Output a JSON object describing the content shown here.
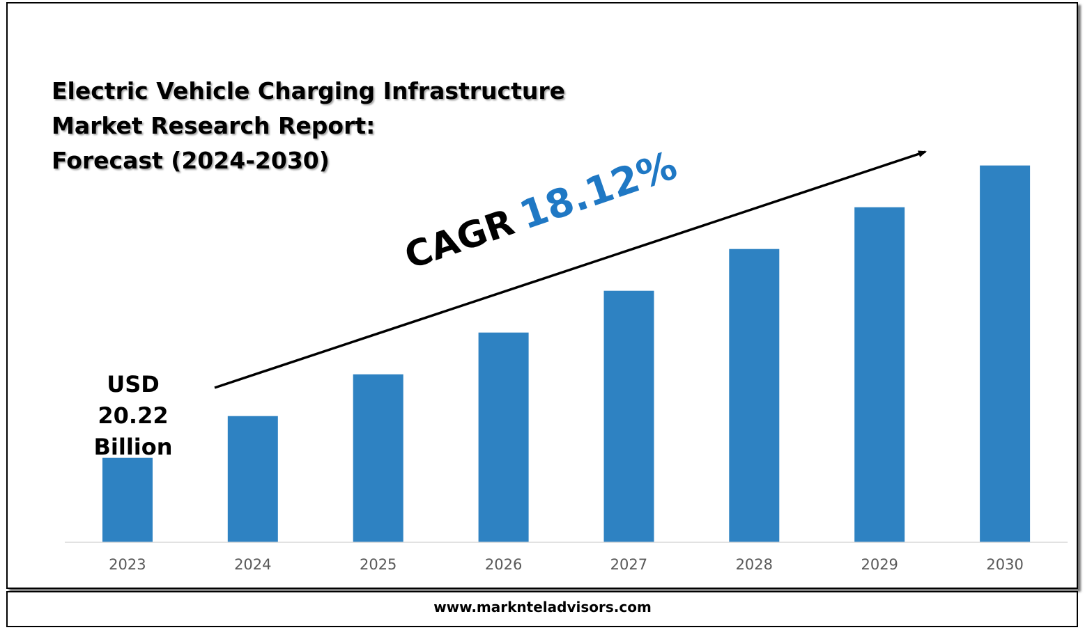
{
  "title_lines": [
    "Electric Vehicle Charging Infrastructure",
    "Market Research Report:",
    "Forecast (2024-2030)"
  ],
  "cagr": {
    "label": "CAGR",
    "value": "18.12%"
  },
  "first_value_label": [
    "USD",
    "20.22",
    "Billion"
  ],
  "footer": "www.marknteladvisors.com",
  "colors": {
    "bar": "#2e82c2",
    "cagr_value": "#1f78c4",
    "axis": "#d9d9d9",
    "tick": "#595959"
  },
  "chart_data": {
    "type": "bar",
    "categories": [
      "2023",
      "2024",
      "2025",
      "2026",
      "2027",
      "2028",
      "2029",
      "2030"
    ],
    "values": [
      20.22,
      30.22,
      40.22,
      50.22,
      60.22,
      70.22,
      80.22,
      90.22
    ],
    "ylim": [
      0,
      100
    ],
    "grid": false,
    "xlabel": "",
    "ylabel": ""
  }
}
